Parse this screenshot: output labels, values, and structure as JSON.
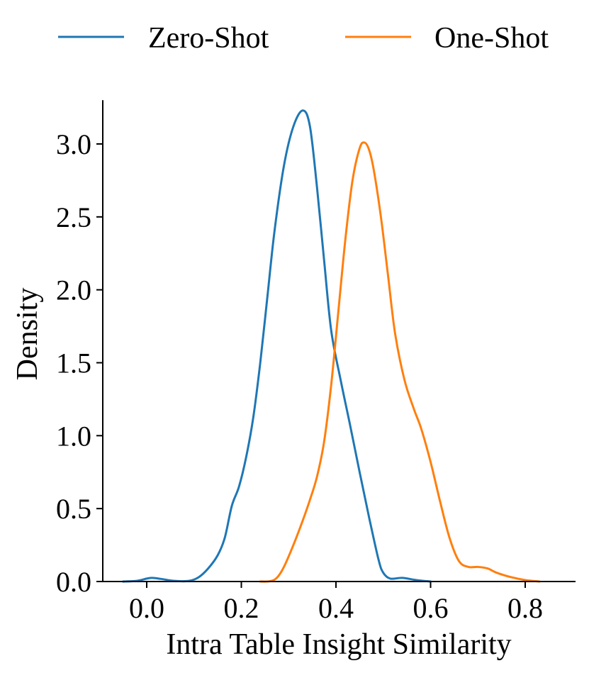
{
  "chart_data": {
    "type": "line",
    "title": "",
    "xlabel": "Intra Table Insight Similarity",
    "ylabel": "Density",
    "xlim": [
      -0.1,
      0.9
    ],
    "ylim": [
      0.0,
      3.3
    ],
    "xticks": [
      0.0,
      0.2,
      0.4,
      0.6,
      0.8
    ],
    "xtick_labels": [
      "0.0",
      "0.2",
      "0.4",
      "0.6",
      "0.8"
    ],
    "yticks": [
      0.0,
      0.5,
      1.0,
      1.5,
      2.0,
      2.5,
      3.0
    ],
    "ytick_labels": [
      "0.0",
      "0.5",
      "1.0",
      "1.5",
      "2.0",
      "2.5",
      "3.0"
    ],
    "grid": false,
    "legend_position": "top, outside plot, horizontal",
    "series": [
      {
        "name": "Zero-Shot",
        "color": "#1f77b4",
        "points": [
          [
            -0.05,
            0.0
          ],
          [
            -0.02,
            0.005
          ],
          [
            0.0,
            0.02
          ],
          [
            0.012,
            0.025
          ],
          [
            0.03,
            0.018
          ],
          [
            0.06,
            0.004
          ],
          [
            0.09,
            0.005
          ],
          [
            0.11,
            0.03
          ],
          [
            0.13,
            0.09
          ],
          [
            0.15,
            0.18
          ],
          [
            0.165,
            0.3
          ],
          [
            0.18,
            0.52
          ],
          [
            0.195,
            0.65
          ],
          [
            0.21,
            0.85
          ],
          [
            0.225,
            1.12
          ],
          [
            0.24,
            1.5
          ],
          [
            0.255,
            1.95
          ],
          [
            0.27,
            2.4
          ],
          [
            0.29,
            2.85
          ],
          [
            0.31,
            3.12
          ],
          [
            0.33,
            3.23
          ],
          [
            0.345,
            3.12
          ],
          [
            0.36,
            2.7
          ],
          [
            0.375,
            2.2
          ],
          [
            0.39,
            1.72
          ],
          [
            0.41,
            1.38
          ],
          [
            0.43,
            1.07
          ],
          [
            0.45,
            0.75
          ],
          [
            0.47,
            0.44
          ],
          [
            0.49,
            0.15
          ],
          [
            0.5,
            0.06
          ],
          [
            0.515,
            0.02
          ],
          [
            0.54,
            0.025
          ],
          [
            0.57,
            0.01
          ],
          [
            0.6,
            0.0
          ]
        ]
      },
      {
        "name": "One-Shot",
        "color": "#ff7f0e",
        "points": [
          [
            0.24,
            0.0
          ],
          [
            0.26,
            0.002
          ],
          [
            0.275,
            0.025
          ],
          [
            0.29,
            0.1
          ],
          [
            0.31,
            0.25
          ],
          [
            0.33,
            0.42
          ],
          [
            0.345,
            0.56
          ],
          [
            0.36,
            0.72
          ],
          [
            0.375,
            0.96
          ],
          [
            0.39,
            1.35
          ],
          [
            0.405,
            1.85
          ],
          [
            0.42,
            2.35
          ],
          [
            0.435,
            2.75
          ],
          [
            0.45,
            2.97
          ],
          [
            0.46,
            3.01
          ],
          [
            0.47,
            2.96
          ],
          [
            0.48,
            2.82
          ],
          [
            0.495,
            2.5
          ],
          [
            0.51,
            2.1
          ],
          [
            0.525,
            1.7
          ],
          [
            0.545,
            1.38
          ],
          [
            0.565,
            1.18
          ],
          [
            0.58,
            1.05
          ],
          [
            0.6,
            0.82
          ],
          [
            0.62,
            0.55
          ],
          [
            0.64,
            0.3
          ],
          [
            0.66,
            0.14
          ],
          [
            0.68,
            0.1
          ],
          [
            0.7,
            0.1
          ],
          [
            0.72,
            0.09
          ],
          [
            0.74,
            0.06
          ],
          [
            0.77,
            0.03
          ],
          [
            0.8,
            0.01
          ],
          [
            0.83,
            0.0
          ]
        ]
      }
    ]
  }
}
